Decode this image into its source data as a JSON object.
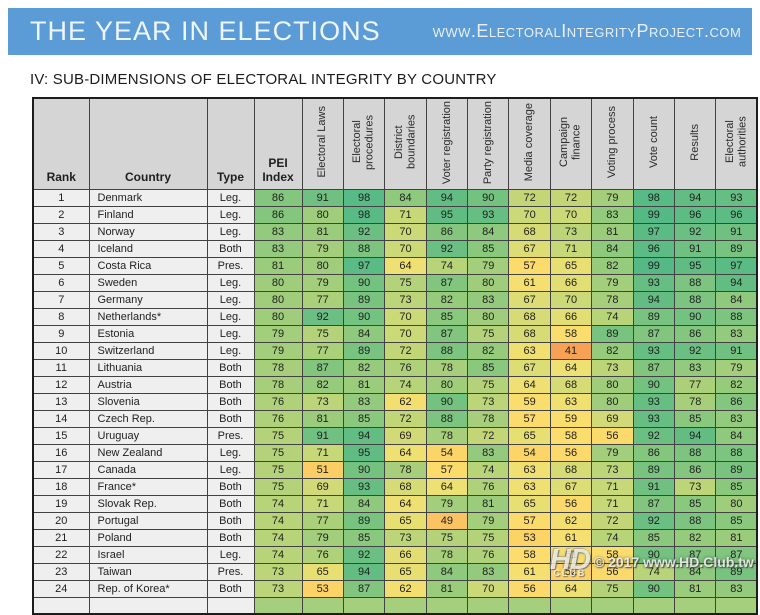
{
  "banner": {
    "title": "THE YEAR IN ELECTIONS",
    "url": "www.ElectoralIntegrityProject.com",
    "bg_color": "#5c9cd6",
    "text_color": "#eef5fc"
  },
  "section_title": "IV: SUB-DIMENSIONS OF ELECTORAL INTEGRITY BY COUNTRY",
  "chart_data": {
    "type": "table",
    "title": "IV: SUB-DIMENSIONS OF ELECTORAL INTEGRITY BY COUNTRY",
    "columns": [
      {
        "label": "Rank",
        "orient": "h"
      },
      {
        "label": "Country",
        "orient": "h"
      },
      {
        "label": "Type",
        "orient": "h"
      },
      {
        "label": "PEI\nIndex",
        "orient": "h"
      },
      {
        "label": "Electoral Laws",
        "orient": "v"
      },
      {
        "label": "Electoral procedures",
        "orient": "v"
      },
      {
        "label": "District boundaries",
        "orient": "v"
      },
      {
        "label": "Voter registration",
        "orient": "v"
      },
      {
        "label": "Party registration",
        "orient": "v"
      },
      {
        "label": "Media coverage",
        "orient": "v"
      },
      {
        "label": "Campaign finance",
        "orient": "v"
      },
      {
        "label": "Voting process",
        "orient": "v"
      },
      {
        "label": "Vote count",
        "orient": "v"
      },
      {
        "label": "Results",
        "orient": "v"
      },
      {
        "label": "Electoral authorities",
        "orient": "v"
      }
    ],
    "score_column_keys": [
      "pei_index",
      "electoral_laws",
      "electoral_procedures",
      "district_boundaries",
      "voter_registration",
      "party_registration",
      "media_coverage",
      "campaign_finance",
      "voting_process",
      "vote_count",
      "results",
      "electoral_authorities"
    ],
    "rows": [
      {
        "rank": "1",
        "country": "Denmark",
        "type": "Leg.",
        "scores": [
          86,
          91,
          98,
          84,
          94,
          90,
          72,
          72,
          79,
          98,
          94,
          93
        ]
      },
      {
        "rank": "2",
        "country": "Finland",
        "type": "Leg.",
        "scores": [
          86,
          80,
          98,
          71,
          95,
          93,
          70,
          70,
          83,
          99,
          96,
          96
        ]
      },
      {
        "rank": "3",
        "country": "Norway",
        "type": "Leg.",
        "scores": [
          83,
          81,
          92,
          70,
          86,
          84,
          68,
          73,
          81,
          97,
          92,
          91
        ]
      },
      {
        "rank": "4",
        "country": "Iceland",
        "type": "Both",
        "scores": [
          83,
          79,
          88,
          70,
          92,
          85,
          67,
          71,
          84,
          96,
          91,
          89
        ]
      },
      {
        "rank": "5",
        "country": "Costa Rica",
        "type": "Pres.",
        "scores": [
          81,
          80,
          97,
          64,
          74,
          79,
          57,
          65,
          82,
          99,
          95,
          97
        ]
      },
      {
        "rank": "6",
        "country": "Sweden",
        "type": "Leg.",
        "scores": [
          80,
          79,
          90,
          75,
          87,
          80,
          61,
          66,
          79,
          93,
          88,
          94
        ]
      },
      {
        "rank": "7",
        "country": "Germany",
        "type": "Leg.",
        "scores": [
          80,
          77,
          89,
          73,
          82,
          83,
          67,
          70,
          78,
          94,
          88,
          84
        ]
      },
      {
        "rank": "8",
        "country": "Netherlands*",
        "type": "Leg.",
        "scores": [
          80,
          92,
          90,
          70,
          85,
          80,
          68,
          66,
          74,
          89,
          90,
          88
        ]
      },
      {
        "rank": "9",
        "country": "Estonia",
        "type": "Leg.",
        "scores": [
          79,
          75,
          84,
          70,
          87,
          75,
          68,
          58,
          89,
          87,
          86,
          83
        ]
      },
      {
        "rank": "10",
        "country": "Switzerland",
        "type": "Leg.",
        "scores": [
          79,
          77,
          89,
          72,
          88,
          82,
          63,
          41,
          82,
          93,
          92,
          91
        ]
      },
      {
        "rank": "11",
        "country": "Lithuania",
        "type": "Both",
        "scores": [
          78,
          87,
          82,
          76,
          78,
          85,
          67,
          64,
          73,
          87,
          83,
          79
        ]
      },
      {
        "rank": "12",
        "country": "Austria",
        "type": "Both",
        "scores": [
          78,
          82,
          81,
          74,
          80,
          75,
          64,
          68,
          80,
          90,
          77,
          82
        ]
      },
      {
        "rank": "13",
        "country": "Slovenia",
        "type": "Both",
        "scores": [
          76,
          73,
          83,
          62,
          90,
          73,
          59,
          63,
          80,
          93,
          78,
          86
        ]
      },
      {
        "rank": "14",
        "country": "Czech Rep.",
        "type": "Both",
        "scores": [
          76,
          81,
          85,
          72,
          88,
          78,
          57,
          59,
          69,
          93,
          85,
          83
        ]
      },
      {
        "rank": "15",
        "country": "Uruguay",
        "type": "Pres.",
        "scores": [
          75,
          91,
          94,
          69,
          78,
          72,
          65,
          58,
          56,
          92,
          94,
          84
        ]
      },
      {
        "rank": "16",
        "country": "New Zealand",
        "type": "Leg.",
        "scores": [
          75,
          71,
          95,
          64,
          54,
          83,
          54,
          56,
          79,
          86,
          88,
          88
        ]
      },
      {
        "rank": "17",
        "country": "Canada",
        "type": "Leg.",
        "scores": [
          75,
          51,
          90,
          78,
          57,
          74,
          63,
          68,
          73,
          89,
          86,
          89
        ]
      },
      {
        "rank": "18",
        "country": "France*",
        "type": "Both",
        "scores": [
          75,
          69,
          93,
          68,
          64,
          76,
          63,
          67,
          71,
          91,
          73,
          85
        ]
      },
      {
        "rank": "19",
        "country": "Slovak Rep.",
        "type": "Both",
        "scores": [
          74,
          71,
          84,
          64,
          79,
          81,
          65,
          56,
          71,
          87,
          85,
          80
        ]
      },
      {
        "rank": "20",
        "country": "Portugal",
        "type": "Both",
        "scores": [
          74,
          77,
          89,
          65,
          49,
          79,
          57,
          62,
          72,
          92,
          88,
          85
        ]
      },
      {
        "rank": "21",
        "country": "Poland",
        "type": "Both",
        "scores": [
          74,
          79,
          85,
          73,
          75,
          75,
          53,
          61,
          74,
          85,
          82,
          81
        ]
      },
      {
        "rank": "22",
        "country": "Israel",
        "type": "Leg.",
        "scores": [
          74,
          76,
          92,
          66,
          78,
          76,
          58,
          61,
          58,
          90,
          87,
          87
        ]
      },
      {
        "rank": "23",
        "country": "Taiwan",
        "type": "Pres.",
        "scores": [
          73,
          65,
          94,
          65,
          84,
          83,
          61,
          52,
          56,
          74,
          84,
          89
        ]
      },
      {
        "rank": "24",
        "country": "Rep. of Korea*",
        "type": "Both",
        "scores": [
          73,
          53,
          87,
          62,
          81,
          70,
          56,
          64,
          75,
          90,
          81,
          83
        ]
      },
      {
        "rank": "",
        "country": "",
        "type": "",
        "scores": [
          null,
          null,
          null,
          null,
          null,
          null,
          null,
          null,
          null,
          null,
          null,
          null
        ],
        "partial": true
      }
    ],
    "color_scale": {
      "description": "red-yellow-green heatmap, low=orange high=green",
      "anchors": [
        [
          41,
          "#F7A156"
        ],
        [
          46,
          "#F9B75E"
        ],
        [
          52,
          "#FBD166"
        ],
        [
          58,
          "#FBDD6D"
        ],
        [
          64,
          "#EEE072"
        ],
        [
          70,
          "#CBD977"
        ],
        [
          76,
          "#AFD17A"
        ],
        [
          82,
          "#97CB7C"
        ],
        [
          88,
          "#7CC47F"
        ],
        [
          94,
          "#63BD83"
        ],
        [
          99,
          "#55B985"
        ]
      ],
      "null_color": "#A5CF7C"
    },
    "value_range": [
      41,
      99
    ]
  },
  "watermark": {
    "logo": "HD",
    "club": "CLUB",
    "text": "© 2017 www.HD.Club.tw"
  }
}
